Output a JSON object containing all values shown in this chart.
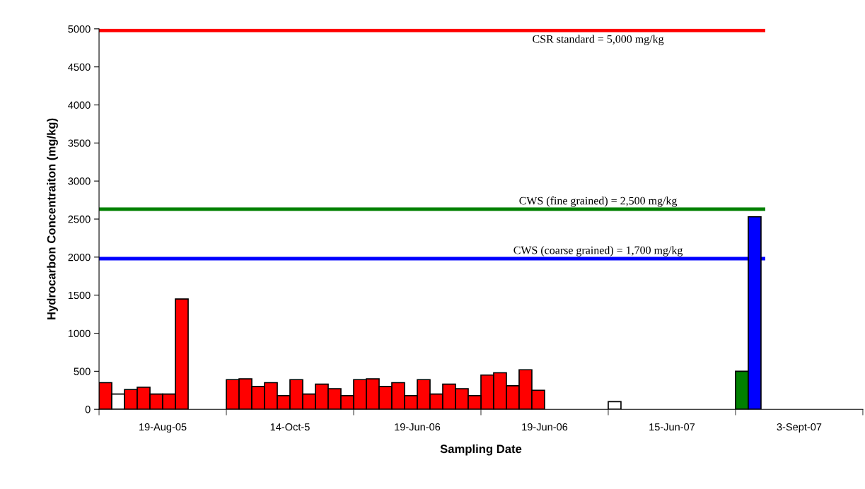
{
  "chart_data": {
    "type": "bar",
    "xlabel": "Sampling Date",
    "ylabel": "Hydrocarbon Concentraiton (mg/kg)",
    "categories": [
      "19-Aug-05",
      "14-Oct-5",
      "19-Jun-06",
      "19-Jun-06",
      "15-Jun-07",
      "3-Sept-07"
    ],
    "series": [
      {
        "values": [
          350,
          390,
          390,
          450,
          100,
          500
        ],
        "colors": [
          "#ff0000",
          "#ff0000",
          "#ff0000",
          "#ff0000",
          "#ffffff",
          "#008000"
        ]
      },
      {
        "values": [
          200,
          400,
          400,
          480,
          null,
          2530
        ],
        "colors": [
          "#ffffff",
          "#ff0000",
          "#ff0000",
          "#ff0000",
          null,
          "#0000ff"
        ]
      },
      {
        "values": [
          260,
          300,
          300,
          310,
          null,
          null
        ],
        "color": "#ff0000"
      },
      {
        "values": [
          290,
          350,
          350,
          520,
          null,
          null
        ],
        "color": "#ff0000"
      },
      {
        "values": [
          200,
          180,
          180,
          250,
          null,
          null
        ],
        "color": "#ff0000"
      },
      {
        "values": [
          200,
          390,
          390,
          null,
          null,
          null
        ],
        "color": "#ff0000"
      },
      {
        "values": [
          1450,
          200,
          200,
          null,
          null,
          null
        ],
        "color": "#ff0000"
      },
      {
        "values": [
          null,
          330,
          330,
          null,
          null,
          null
        ],
        "color": "#ff0000"
      },
      {
        "values": [
          null,
          270,
          270,
          null,
          null,
          null
        ],
        "color": "#ff0000"
      },
      {
        "values": [
          null,
          180,
          180,
          null,
          null,
          null
        ],
        "color": "#ff0000"
      }
    ],
    "ylim": [
      0,
      5000
    ],
    "yticks": [
      0,
      500,
      1000,
      1500,
      2000,
      2500,
      3000,
      3500,
      4000,
      4500,
      5000
    ],
    "ref_lines": [
      {
        "axis": "y",
        "value": 4980,
        "color": "#ff0000"
      },
      {
        "axis": "y",
        "value": 2630,
        "color": "#008000"
      },
      {
        "axis": "y",
        "value": 1980,
        "color": "#0000ff"
      }
    ],
    "annotations": [
      "CSR standard = 5,000 mg/kg",
      "CWS (fine grained) = 2,500 mg/kg",
      "CWS (coarse grained) = 1,700 mg/kg"
    ],
    "grid": false,
    "legend": false
  }
}
